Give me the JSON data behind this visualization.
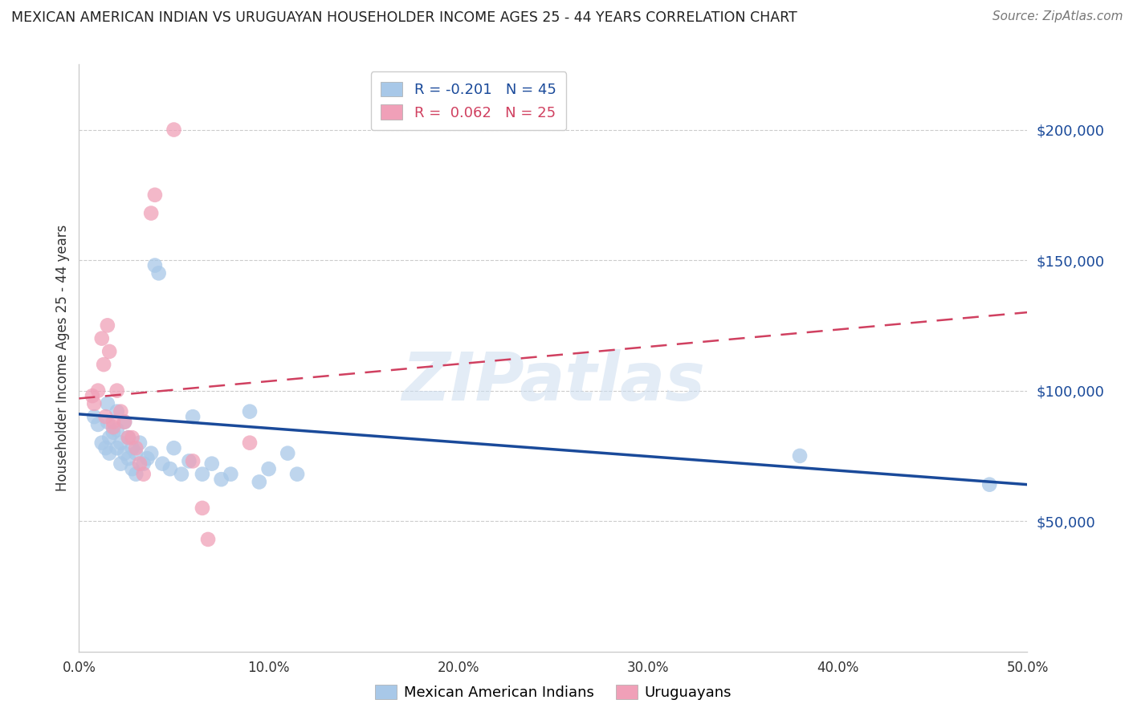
{
  "title": "MEXICAN AMERICAN INDIAN VS URUGUAYAN HOUSEHOLDER INCOME AGES 25 - 44 YEARS CORRELATION CHART",
  "source": "Source: ZipAtlas.com",
  "ylabel": "Householder Income Ages 25 - 44 years",
  "ytick_values": [
    50000,
    100000,
    150000,
    200000
  ],
  "ylim": [
    0,
    225000
  ],
  "xlim": [
    0.0,
    0.5
  ],
  "xtick_values": [
    0.0,
    0.1,
    0.2,
    0.3,
    0.4,
    0.5
  ],
  "xtick_labels": [
    "0.0%",
    "10.0%",
    "20.0%",
    "30.0%",
    "40.0%",
    "50.0%"
  ],
  "blue_color": "#a8c8e8",
  "pink_color": "#f0a0b8",
  "blue_line_color": "#1a4a9a",
  "pink_line_color": "#d04060",
  "watermark_text": "ZIPatlas",
  "legend_blue_r": "-0.201",
  "legend_blue_n": "45",
  "legend_pink_r": "0.062",
  "legend_pink_n": "25",
  "blue_scatter_x": [
    0.008,
    0.01,
    0.012,
    0.014,
    0.015,
    0.015,
    0.016,
    0.016,
    0.018,
    0.02,
    0.02,
    0.02,
    0.022,
    0.022,
    0.024,
    0.024,
    0.026,
    0.026,
    0.028,
    0.028,
    0.03,
    0.03,
    0.032,
    0.034,
    0.036,
    0.038,
    0.04,
    0.042,
    0.044,
    0.048,
    0.05,
    0.054,
    0.058,
    0.06,
    0.065,
    0.07,
    0.075,
    0.08,
    0.09,
    0.095,
    0.1,
    0.11,
    0.115,
    0.38,
    0.48
  ],
  "blue_scatter_y": [
    90000,
    87000,
    80000,
    78000,
    95000,
    88000,
    82000,
    76000,
    84000,
    92000,
    85000,
    78000,
    80000,
    72000,
    88000,
    76000,
    82000,
    74000,
    78000,
    70000,
    76000,
    68000,
    80000,
    72000,
    74000,
    76000,
    148000,
    145000,
    72000,
    70000,
    78000,
    68000,
    73000,
    90000,
    68000,
    72000,
    66000,
    68000,
    92000,
    65000,
    70000,
    76000,
    68000,
    75000,
    64000
  ],
  "pink_scatter_x": [
    0.007,
    0.008,
    0.01,
    0.012,
    0.013,
    0.014,
    0.015,
    0.016,
    0.018,
    0.018,
    0.02,
    0.022,
    0.024,
    0.026,
    0.028,
    0.03,
    0.032,
    0.034,
    0.038,
    0.04,
    0.05,
    0.06,
    0.065,
    0.068,
    0.09
  ],
  "pink_scatter_y": [
    98000,
    95000,
    100000,
    120000,
    110000,
    90000,
    125000,
    115000,
    88000,
    86000,
    100000,
    92000,
    88000,
    82000,
    82000,
    78000,
    72000,
    68000,
    168000,
    175000,
    200000,
    73000,
    55000,
    43000,
    80000
  ],
  "blue_line_x0": 0.0,
  "blue_line_x1": 0.5,
  "blue_line_y0": 91000,
  "blue_line_y1": 64000,
  "pink_line_x0": 0.0,
  "pink_line_x1": 0.5,
  "pink_line_y0": 97000,
  "pink_line_y1": 130000
}
